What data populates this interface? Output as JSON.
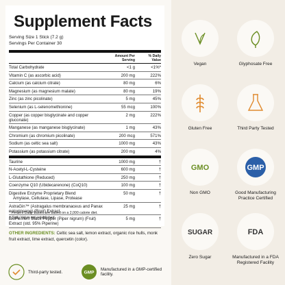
{
  "header": {
    "title": "Supplement Facts",
    "serving_size": "Serving Size 1 Stick (7.2 g)",
    "servings_per_container": "Servings Per Container 30"
  },
  "table": {
    "columns": [
      "Amount Per Serving",
      "% Daily Value"
    ],
    "section1": [
      {
        "name": "Total Carbohydrate",
        "amount": "<1 g",
        "dv": "<1%*"
      },
      {
        "name": "Vitamin C (as ascorbic acid)",
        "amount": "200 mg",
        "dv": "222%"
      },
      {
        "name": "Calcium (as calcium citrate)",
        "amount": "80 mg",
        "dv": "6%"
      },
      {
        "name": "Magnesium (as magnesium malate)",
        "amount": "80 mg",
        "dv": "19%"
      },
      {
        "name": "Zinc (as zinc picolinate)",
        "amount": "5 mg",
        "dv": "45%"
      },
      {
        "name": "Selenium (as L-selenomethionine)",
        "amount": "55 mcg",
        "dv": "100%"
      },
      {
        "name": "Copper (as copper bisglycinate and copper gluconate)",
        "amount": "2 mg",
        "dv": "222%"
      },
      {
        "name": "Manganese (as manganese bisglycinate)",
        "amount": "1 mg",
        "dv": "43%"
      },
      {
        "name": "Chromium (as chromium picolinate)",
        "amount": "200 mcg",
        "dv": "571%"
      },
      {
        "name": "Sodium (as celtic sea salt)",
        "amount": "1000 mg",
        "dv": "43%"
      },
      {
        "name": "Potassium (as potassium citrate)",
        "amount": "200 mg",
        "dv": "4%"
      }
    ],
    "section2": [
      {
        "name": "Taurine",
        "amount": "1000 mg",
        "dv": "†"
      },
      {
        "name": "N-Acetyl-L-Cysteine",
        "amount": "600 mg",
        "dv": "†"
      },
      {
        "name": "L-Glutathione (Reduced)",
        "amount": "250 mg",
        "dv": "†"
      },
      {
        "name": "Coenzyme Q10 (Ubidecarenone) (CoQ10)",
        "amount": "100 mg",
        "dv": "†"
      },
      {
        "name": "Digestive Enzyme Proprietary Blend",
        "detail": "Amylase, Cellulase, Lipase, Protease",
        "amount": "50 mg",
        "dv": "†"
      },
      {
        "name": "AstraGin™ (Astragalus membranaceus and Panax notoginseng) (Root) Extract",
        "amount": "25 mg",
        "dv": "†"
      },
      {
        "name": "BioPerine® Black Pepper (Piper nigrum) (Fruit) Extract (std. 95% Piperine)",
        "amount": "5 mg",
        "dv": "†"
      }
    ]
  },
  "footnotes": [
    "* Percent Daily Values are based on a 2,000 calorie diet.",
    "† Daily Value not established."
  ],
  "other_ingredients": {
    "label": "OTHER INGREDIENTS:",
    "text": "Celtic sea salt, lemon extract, organic rice hulls, monk fruit extract, lime extract, quercetin (color)."
  },
  "badges": [
    {
      "label": "Third-party tested."
    },
    {
      "icon_text": "GMP",
      "label": "Manufactured in a GMP-certified facility."
    }
  ],
  "certifications": [
    {
      "label": "Vegan"
    },
    {
      "label": "Glyphosate Free"
    },
    {
      "label": "Gluten Free"
    },
    {
      "label": "Third Party Tested"
    },
    {
      "icon_text": "GMO",
      "label": "Non GMO"
    },
    {
      "icon_text": "GMP",
      "label": "Good Manufacturing Practice Certified"
    },
    {
      "icon_text": "SUGAR",
      "label": "Zero Sugar"
    },
    {
      "icon_text": "FDA",
      "label": "Manufactured in a FDA Registered Facility"
    }
  ]
}
